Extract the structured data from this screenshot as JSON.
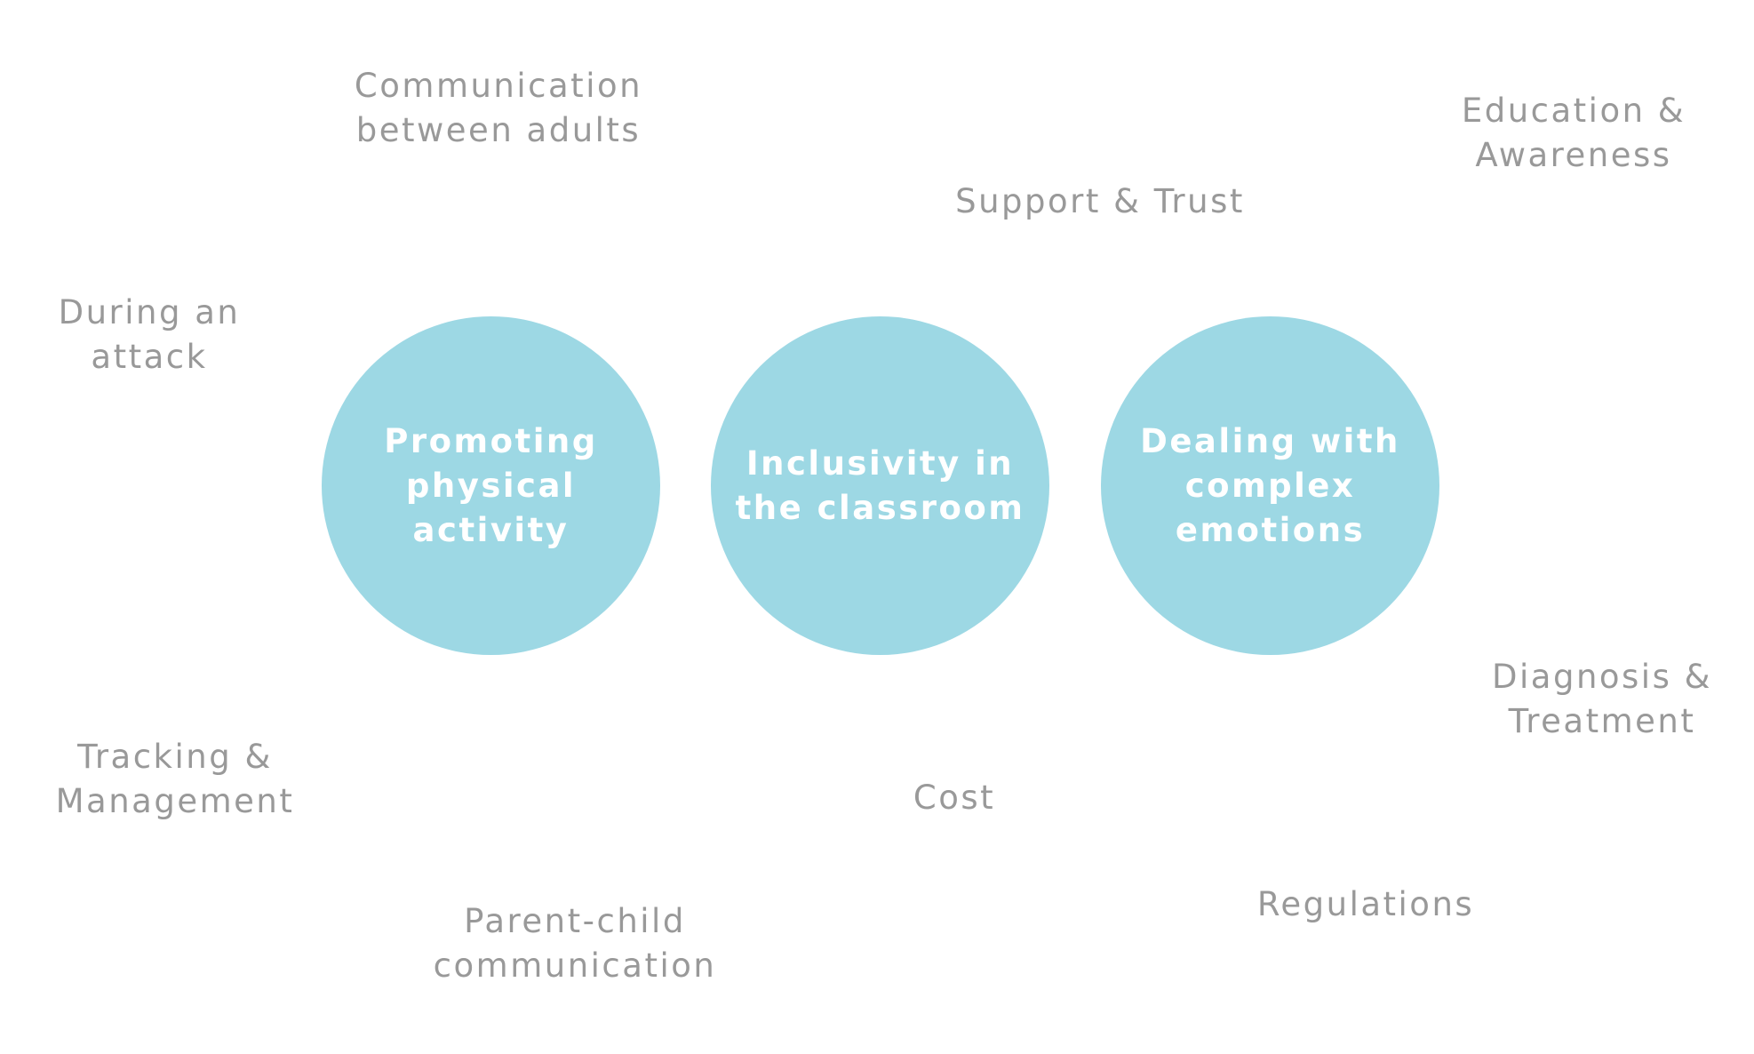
{
  "colors": {
    "circle_fill": "#9dd8e4",
    "circle_text": "#ffffff",
    "topic_text": "#999999",
    "background": "#ffffff"
  },
  "focus_areas": [
    {
      "lines": [
        "Promoting",
        "physical",
        "activity"
      ]
    },
    {
      "lines": [
        "Inclusivity in",
        "the classroom"
      ]
    },
    {
      "lines": [
        "Dealing with",
        "complex",
        "emotions"
      ]
    }
  ],
  "topics": {
    "communication_between_adults": [
      "Communication",
      "between adults"
    ],
    "education_awareness": [
      "Education &",
      "Awareness"
    ],
    "support_trust": [
      "Support & Trust"
    ],
    "during_an_attack": [
      "During an",
      "attack"
    ],
    "diagnosis_treatment": [
      "Diagnosis &",
      "Treatment"
    ],
    "tracking_management": [
      "Tracking &",
      "Management"
    ],
    "cost": [
      "Cost"
    ],
    "regulations": [
      "Regulations"
    ],
    "parent_child_communication": [
      "Parent-child",
      "communication"
    ]
  }
}
